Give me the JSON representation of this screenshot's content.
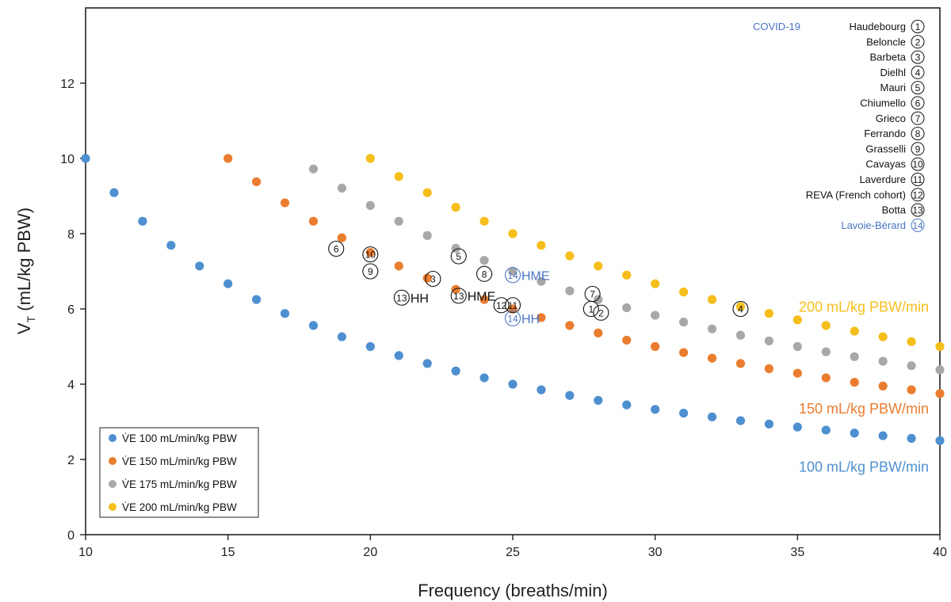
{
  "chart_data": {
    "type": "scatter",
    "xlabel": "Frequency (breaths/min)",
    "ylabel": "V",
    "ylabel_sub": "T",
    "ylabel_rest": " (mL/kg PBW)",
    "xlim": [
      10,
      40
    ],
    "ylim": [
      0,
      14
    ],
    "x_ticks": [
      10,
      15,
      20,
      25,
      30,
      35,
      40
    ],
    "y_ticks": [
      0,
      2,
      4,
      6,
      8,
      10,
      12
    ],
    "grid": false,
    "legend_position": "bottom-left",
    "series": [
      {
        "name": "V̇E 100 mL/min/kg PBW",
        "color": "#4e8fd0",
        "x": [
          10,
          11,
          12,
          13,
          14,
          15,
          16,
          17,
          18,
          19,
          20,
          21,
          22,
          23,
          24,
          25,
          26,
          27,
          28,
          29,
          30,
          31,
          32,
          33,
          34,
          35,
          36,
          37,
          38,
          39,
          40
        ],
        "y": [
          10,
          9.09,
          8.33,
          7.69,
          7.14,
          6.67,
          6.25,
          5.88,
          5.56,
          5.26,
          5,
          4.76,
          4.55,
          4.35,
          4.17,
          4,
          3.85,
          3.7,
          3.57,
          3.45,
          3.33,
          3.23,
          3.13,
          3.03,
          2.94,
          2.86,
          2.78,
          2.7,
          2.63,
          2.56,
          2.5
        ]
      },
      {
        "name": "V̇E 150 mL/min/kg PBW",
        "color": "#ea7d2f",
        "x": [
          15,
          16,
          17,
          18,
          19,
          20,
          21,
          22,
          23,
          24,
          25,
          26,
          27,
          28,
          29,
          30,
          31,
          32,
          33,
          34,
          35,
          36,
          37,
          38,
          39,
          40
        ],
        "y": [
          10,
          9.38,
          8.82,
          8.33,
          7.89,
          7.5,
          7.14,
          6.82,
          6.52,
          6.25,
          6,
          5.77,
          5.56,
          5.36,
          5.17,
          5,
          4.84,
          4.69,
          4.55,
          4.41,
          4.29,
          4.17,
          4.05,
          3.95,
          3.85,
          3.75
        ]
      },
      {
        "name": "V̇E 175 mL/min/kg PBW",
        "color": "#a8a8a8",
        "x": [
          18,
          19,
          20,
          21,
          22,
          23,
          24,
          25,
          26,
          27,
          28,
          29,
          30,
          31,
          32,
          33,
          34,
          35,
          36,
          37,
          38,
          39,
          40
        ],
        "y": [
          9.72,
          9.21,
          8.75,
          8.33,
          7.95,
          7.61,
          7.29,
          7,
          6.73,
          6.48,
          6.25,
          6.03,
          5.83,
          5.65,
          5.47,
          5.3,
          5.15,
          5,
          4.86,
          4.73,
          4.61,
          4.49,
          4.38
        ]
      },
      {
        "name": "V̇E 200 mL/min/kg PBW",
        "color": "#f6be1a",
        "x": [
          20,
          21,
          22,
          23,
          24,
          25,
          26,
          27,
          28,
          29,
          30,
          31,
          32,
          33,
          34,
          35,
          36,
          37,
          38,
          39,
          40
        ],
        "y": [
          10,
          9.52,
          9.09,
          8.7,
          8.33,
          8,
          7.69,
          7.41,
          7.14,
          6.9,
          6.67,
          6.45,
          6.25,
          6.06,
          5.88,
          5.71,
          5.56,
          5.41,
          5.26,
          5.13,
          5
        ]
      }
    ],
    "line_labels": [
      {
        "text": "200 mL/kg PBW/min",
        "color": "#f6be1a",
        "x": 40,
        "y": 6.05
      },
      {
        "text": "150 mL/kg PBW/min",
        "color": "#ea7d2f",
        "x": 40,
        "y": 3.35
      },
      {
        "text": "100 mL/kg PBW/min",
        "color": "#4e8fd0",
        "x": 40,
        "y": 1.8
      }
    ],
    "study_markers": [
      {
        "num": "1",
        "x": 27.75,
        "y": 6.0
      },
      {
        "num": "2",
        "x": 28.1,
        "y": 5.9
      },
      {
        "num": "3",
        "x": 22.2,
        "y": 6.8
      },
      {
        "num": "4",
        "x": 33.0,
        "y": 6.0
      },
      {
        "num": "5",
        "x": 23.1,
        "y": 7.4
      },
      {
        "num": "6",
        "x": 18.8,
        "y": 7.6
      },
      {
        "num": "7",
        "x": 27.8,
        "y": 6.4
      },
      {
        "num": "8",
        "x": 24.0,
        "y": 6.93
      },
      {
        "num": "9",
        "x": 20.0,
        "y": 7.0
      },
      {
        "num": "10",
        "x": 20.0,
        "y": 7.45
      },
      {
        "num": "11",
        "x": 25.0,
        "y": 6.1
      },
      {
        "num": "12",
        "x": 24.6,
        "y": 6.1
      },
      {
        "num": "13",
        "x": 23.1,
        "y": 6.35,
        "suffix": "HME",
        "color": "#111111"
      },
      {
        "num": "13",
        "x": 21.1,
        "y": 6.3,
        "suffix": "HH",
        "color": "#111111"
      },
      {
        "num": "14",
        "x": 25.0,
        "y": 6.9,
        "suffix": "HME",
        "color": "#4a74c4"
      },
      {
        "num": "14",
        "x": 25.0,
        "y": 5.75,
        "suffix": "HH",
        "color": "#4a74c4"
      }
    ],
    "covid_label": "COVID-19",
    "references": [
      {
        "name": "Haudebourg",
        "num": "1",
        "color": "#111111"
      },
      {
        "name": "Beloncle",
        "num": "2",
        "color": "#111111"
      },
      {
        "name": "Barbeta",
        "num": "3",
        "color": "#111111"
      },
      {
        "name": "Dielhl",
        "num": "4",
        "color": "#111111"
      },
      {
        "name": "Mauri",
        "num": "5",
        "color": "#111111"
      },
      {
        "name": "Chiumello",
        "num": "6",
        "color": "#111111"
      },
      {
        "name": "Grieco",
        "num": "7",
        "color": "#111111"
      },
      {
        "name": "Ferrando",
        "num": "8",
        "color": "#111111"
      },
      {
        "name": "Grasselli",
        "num": "9",
        "color": "#111111"
      },
      {
        "name": "Cavayas",
        "num": "10",
        "color": "#111111"
      },
      {
        "name": "Laverdure",
        "num": "11",
        "color": "#111111"
      },
      {
        "name": "REVA (French cohort)",
        "num": "12",
        "color": "#111111"
      },
      {
        "name": "Botta",
        "num": "13",
        "color": "#111111"
      },
      {
        "name": "Lavoie-Bérard",
        "num": "14",
        "color": "#4a74c4"
      }
    ],
    "covid_color": "#4a74c4"
  }
}
